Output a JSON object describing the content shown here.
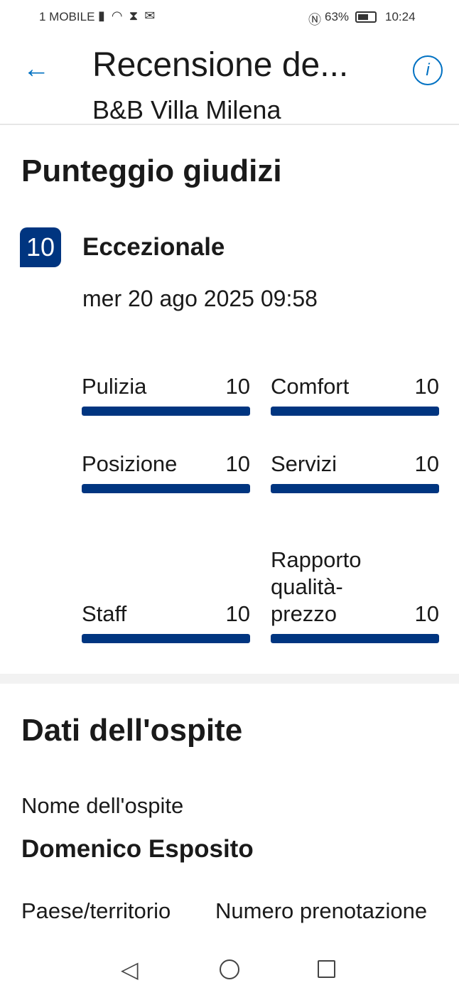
{
  "status_bar": {
    "carrier": "1 MOBILE",
    "battery": "63%",
    "time": "10:24"
  },
  "header": {
    "title": "Recensione de...",
    "subtitle": "B&B Villa Milena"
  },
  "scores": {
    "title": "Punteggio giudizi",
    "overall": "10",
    "overall_label": "Eccezionale",
    "date": "mer 20 ago 2025 09:58",
    "max": 10,
    "categories": [
      {
        "label": "Pulizia",
        "value": "10"
      },
      {
        "label": "Comfort",
        "value": "10"
      },
      {
        "label": "Posizione",
        "value": "10"
      },
      {
        "label": "Servizi",
        "value": "10"
      },
      {
        "label": "Staff",
        "value": "10"
      },
      {
        "label": "Rapporto qualità-prezzo",
        "value": "10"
      }
    ]
  },
  "guest": {
    "title": "Dati dell'ospite",
    "name_label": "Nome dell'ospite",
    "name": "Domenico Esposito",
    "country_label": "Paese/territorio",
    "booking_label": "Numero prenotazione"
  },
  "colors": {
    "accent": "#003580",
    "link": "#0071c2"
  }
}
